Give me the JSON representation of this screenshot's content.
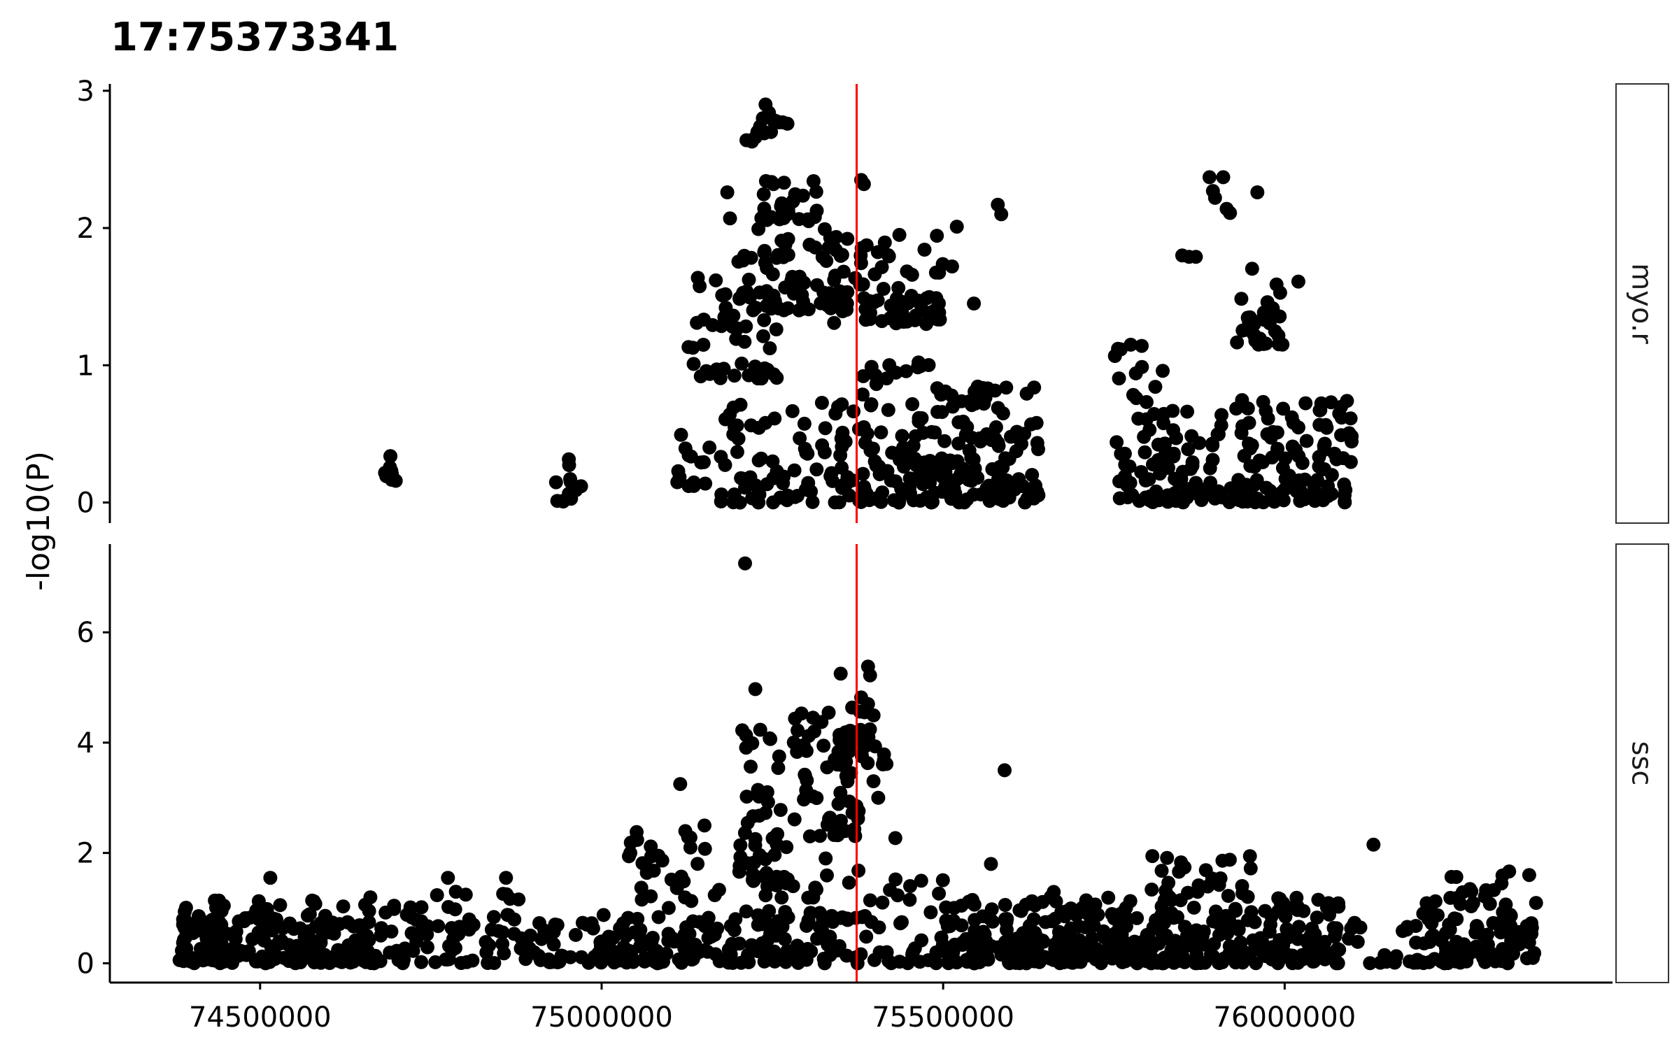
{
  "chart_data": {
    "type": "scatter",
    "title": "17:75373341",
    "ylabel": "-log10(P)",
    "xlabel": "",
    "xlim": [
      74280000,
      76480000
    ],
    "x_ticks": [
      74500000,
      75000000,
      75500000,
      76000000
    ],
    "x_tick_labels": [
      "74500000",
      "75000000",
      "75500000",
      "76000000"
    ],
    "vline": {
      "x": 75373341,
      "color": "#ff0000"
    },
    "point_color": "#000000",
    "grid": false,
    "facets": [
      {
        "name": "myo.r",
        "ylim": [
          -0.15,
          3.05
        ],
        "y_ticks": [
          0,
          1,
          2,
          3
        ],
        "y_tick_labels": [
          "0",
          "1",
          "2",
          "3"
        ],
        "clusters": [
          {
            "x0": 74680000,
            "x1": 74700000,
            "ymin": 0.15,
            "ymax": 0.37,
            "n": 10
          },
          {
            "x0": 74930000,
            "x1": 74970000,
            "ymin": 0.0,
            "ymax": 0.33,
            "n": 12
          },
          {
            "x0": 75080000,
            "x1": 75160000,
            "ymin": 0.12,
            "ymax": 0.55,
            "n": 14
          },
          {
            "x0": 75120000,
            "x1": 75260000,
            "ymin": 0.9,
            "ymax": 1.65,
            "n": 45
          },
          {
            "x0": 75170000,
            "x1": 75360000,
            "ymin": 0.0,
            "ymax": 0.75,
            "n": 70
          },
          {
            "x0": 75200000,
            "x1": 75360000,
            "ymin": 1.4,
            "ymax": 2.0,
            "n": 70
          },
          {
            "x0": 75230000,
            "x1": 75320000,
            "ymin": 2.05,
            "ymax": 2.35,
            "n": 30
          },
          {
            "x0": 75340000,
            "x1": 75500000,
            "ymin": 1.3,
            "ymax": 2.0,
            "n": 70
          },
          {
            "x0": 75350000,
            "x1": 75500000,
            "ymin": 0.0,
            "ymax": 1.05,
            "n": 110
          },
          {
            "x0": 75500000,
            "x1": 75640000,
            "ymin": 0.0,
            "ymax": 0.85,
            "n": 110
          },
          {
            "x0": 75750000,
            "x1": 75830000,
            "ymin": 0.0,
            "ymax": 1.2,
            "n": 45
          },
          {
            "x0": 75800000,
            "x1": 76100000,
            "ymin": 0.0,
            "ymax": 0.75,
            "n": 170
          },
          {
            "x0": 75930000,
            "x1": 76000000,
            "ymin": 1.15,
            "ymax": 1.8,
            "n": 30
          }
        ],
        "points": [
          {
            "x": 75220000,
            "y": 2.63
          },
          {
            "x": 75225000,
            "y": 2.66
          },
          {
            "x": 75228000,
            "y": 2.7
          },
          {
            "x": 75232000,
            "y": 2.74
          },
          {
            "x": 75236000,
            "y": 2.8
          },
          {
            "x": 75240000,
            "y": 2.9
          },
          {
            "x": 75245000,
            "y": 2.84
          },
          {
            "x": 75250000,
            "y": 2.79
          },
          {
            "x": 75255000,
            "y": 2.78
          },
          {
            "x": 75260000,
            "y": 2.77
          },
          {
            "x": 75265000,
            "y": 2.77
          },
          {
            "x": 75272000,
            "y": 2.76
          },
          {
            "x": 75212000,
            "y": 2.64
          },
          {
            "x": 75238000,
            "y": 2.69
          },
          {
            "x": 75248000,
            "y": 2.7
          },
          {
            "x": 75184000,
            "y": 2.26
          },
          {
            "x": 75188000,
            "y": 2.07
          },
          {
            "x": 75380000,
            "y": 2.35
          },
          {
            "x": 75384000,
            "y": 2.32
          },
          {
            "x": 75890000,
            "y": 2.37
          },
          {
            "x": 75910000,
            "y": 2.37
          },
          {
            "x": 75895000,
            "y": 2.27
          },
          {
            "x": 75898000,
            "y": 2.22
          },
          {
            "x": 75915000,
            "y": 2.14
          },
          {
            "x": 75920000,
            "y": 2.11
          },
          {
            "x": 75960000,
            "y": 2.26
          },
          {
            "x": 75850000,
            "y": 1.8
          },
          {
            "x": 75860000,
            "y": 1.79
          },
          {
            "x": 75870000,
            "y": 1.79
          },
          {
            "x": 75580000,
            "y": 2.17
          },
          {
            "x": 75585000,
            "y": 2.1
          },
          {
            "x": 75520000,
            "y": 2.01
          },
          {
            "x": 75513000,
            "y": 1.72
          },
          {
            "x": 76020000,
            "y": 1.61
          },
          {
            "x": 75545000,
            "y": 1.45
          },
          {
            "x": 75633000,
            "y": 0.03
          }
        ]
      },
      {
        "name": "ssc",
        "ylim": [
          -0.35,
          7.6
        ],
        "y_ticks": [
          0,
          2,
          4,
          6
        ],
        "y_tick_labels": [
          "0",
          "2",
          "4",
          "6"
        ],
        "clusters": [
          {
            "x0": 74380000,
            "x1": 74660000,
            "ymin": 0.0,
            "ymax": 1.15,
            "n": 200
          },
          {
            "x0": 74660000,
            "x1": 74880000,
            "ymin": 0.0,
            "ymax": 1.3,
            "n": 80
          },
          {
            "x0": 74880000,
            "x1": 75000000,
            "ymin": 0.0,
            "ymax": 0.8,
            "n": 40
          },
          {
            "x0": 75000000,
            "x1": 75200000,
            "ymin": 0.0,
            "ymax": 0.9,
            "n": 90
          },
          {
            "x0": 75040000,
            "x1": 75180000,
            "ymin": 1.0,
            "ymax": 2.5,
            "n": 30
          },
          {
            "x0": 75200000,
            "x1": 75280000,
            "ymin": 1.5,
            "ymax": 4.5,
            "n": 45
          },
          {
            "x0": 75280000,
            "x1": 75380000,
            "ymin": 2.3,
            "ymax": 4.6,
            "n": 50
          },
          {
            "x0": 75340000,
            "x1": 75420000,
            "ymin": 3.6,
            "ymax": 4.8,
            "n": 25
          },
          {
            "x0": 75200000,
            "x1": 75500000,
            "ymin": 0.0,
            "ymax": 1.6,
            "n": 120
          },
          {
            "x0": 75500000,
            "x1": 75720000,
            "ymin": 0.0,
            "ymax": 1.3,
            "n": 150
          },
          {
            "x0": 75720000,
            "x1": 76080000,
            "ymin": 0.0,
            "ymax": 1.2,
            "n": 240
          },
          {
            "x0": 75800000,
            "x1": 75960000,
            "ymin": 1.2,
            "ymax": 2.0,
            "n": 25
          },
          {
            "x0": 76080000,
            "x1": 76200000,
            "ymin": 0.0,
            "ymax": 0.8,
            "n": 25
          },
          {
            "x0": 76200000,
            "x1": 76370000,
            "ymin": 0.0,
            "ymax": 1.2,
            "n": 100
          },
          {
            "x0": 76230000,
            "x1": 76330000,
            "ymin": 1.2,
            "ymax": 1.7,
            "n": 12
          }
        ],
        "points": [
          {
            "x": 75210000,
            "y": 7.25
          },
          {
            "x": 75390000,
            "y": 5.38
          },
          {
            "x": 75393000,
            "y": 5.22
          },
          {
            "x": 75350000,
            "y": 5.25
          },
          {
            "x": 75225000,
            "y": 4.97
          },
          {
            "x": 75390000,
            "y": 4.7
          },
          {
            "x": 75385000,
            "y": 4.55
          },
          {
            "x": 75380000,
            "y": 4.82
          },
          {
            "x": 75260000,
            "y": 3.75
          },
          {
            "x": 75300000,
            "y": 3.85
          },
          {
            "x": 75365000,
            "y": 3.45
          },
          {
            "x": 75360000,
            "y": 3.3
          },
          {
            "x": 75405000,
            "y": 3.0
          },
          {
            "x": 75398000,
            "y": 3.3
          },
          {
            "x": 75590000,
            "y": 3.5
          },
          {
            "x": 75115000,
            "y": 3.25
          },
          {
            "x": 75130000,
            "y": 2.28
          },
          {
            "x": 75040000,
            "y": 1.94
          },
          {
            "x": 75042000,
            "y": 2.0
          },
          {
            "x": 75328000,
            "y": 1.9
          },
          {
            "x": 75376000,
            "y": 1.68
          },
          {
            "x": 75430000,
            "y": 2.27
          },
          {
            "x": 75370000,
            "y": 2.43
          },
          {
            "x": 75333000,
            "y": 2.62
          },
          {
            "x": 75262000,
            "y": 2.78
          },
          {
            "x": 76130000,
            "y": 2.15
          },
          {
            "x": 76358000,
            "y": 1.6
          },
          {
            "x": 74515000,
            "y": 1.55
          },
          {
            "x": 74775000,
            "y": 1.55
          },
          {
            "x": 74860000,
            "y": 1.55
          },
          {
            "x": 75570000,
            "y": 1.8
          }
        ]
      }
    ]
  }
}
